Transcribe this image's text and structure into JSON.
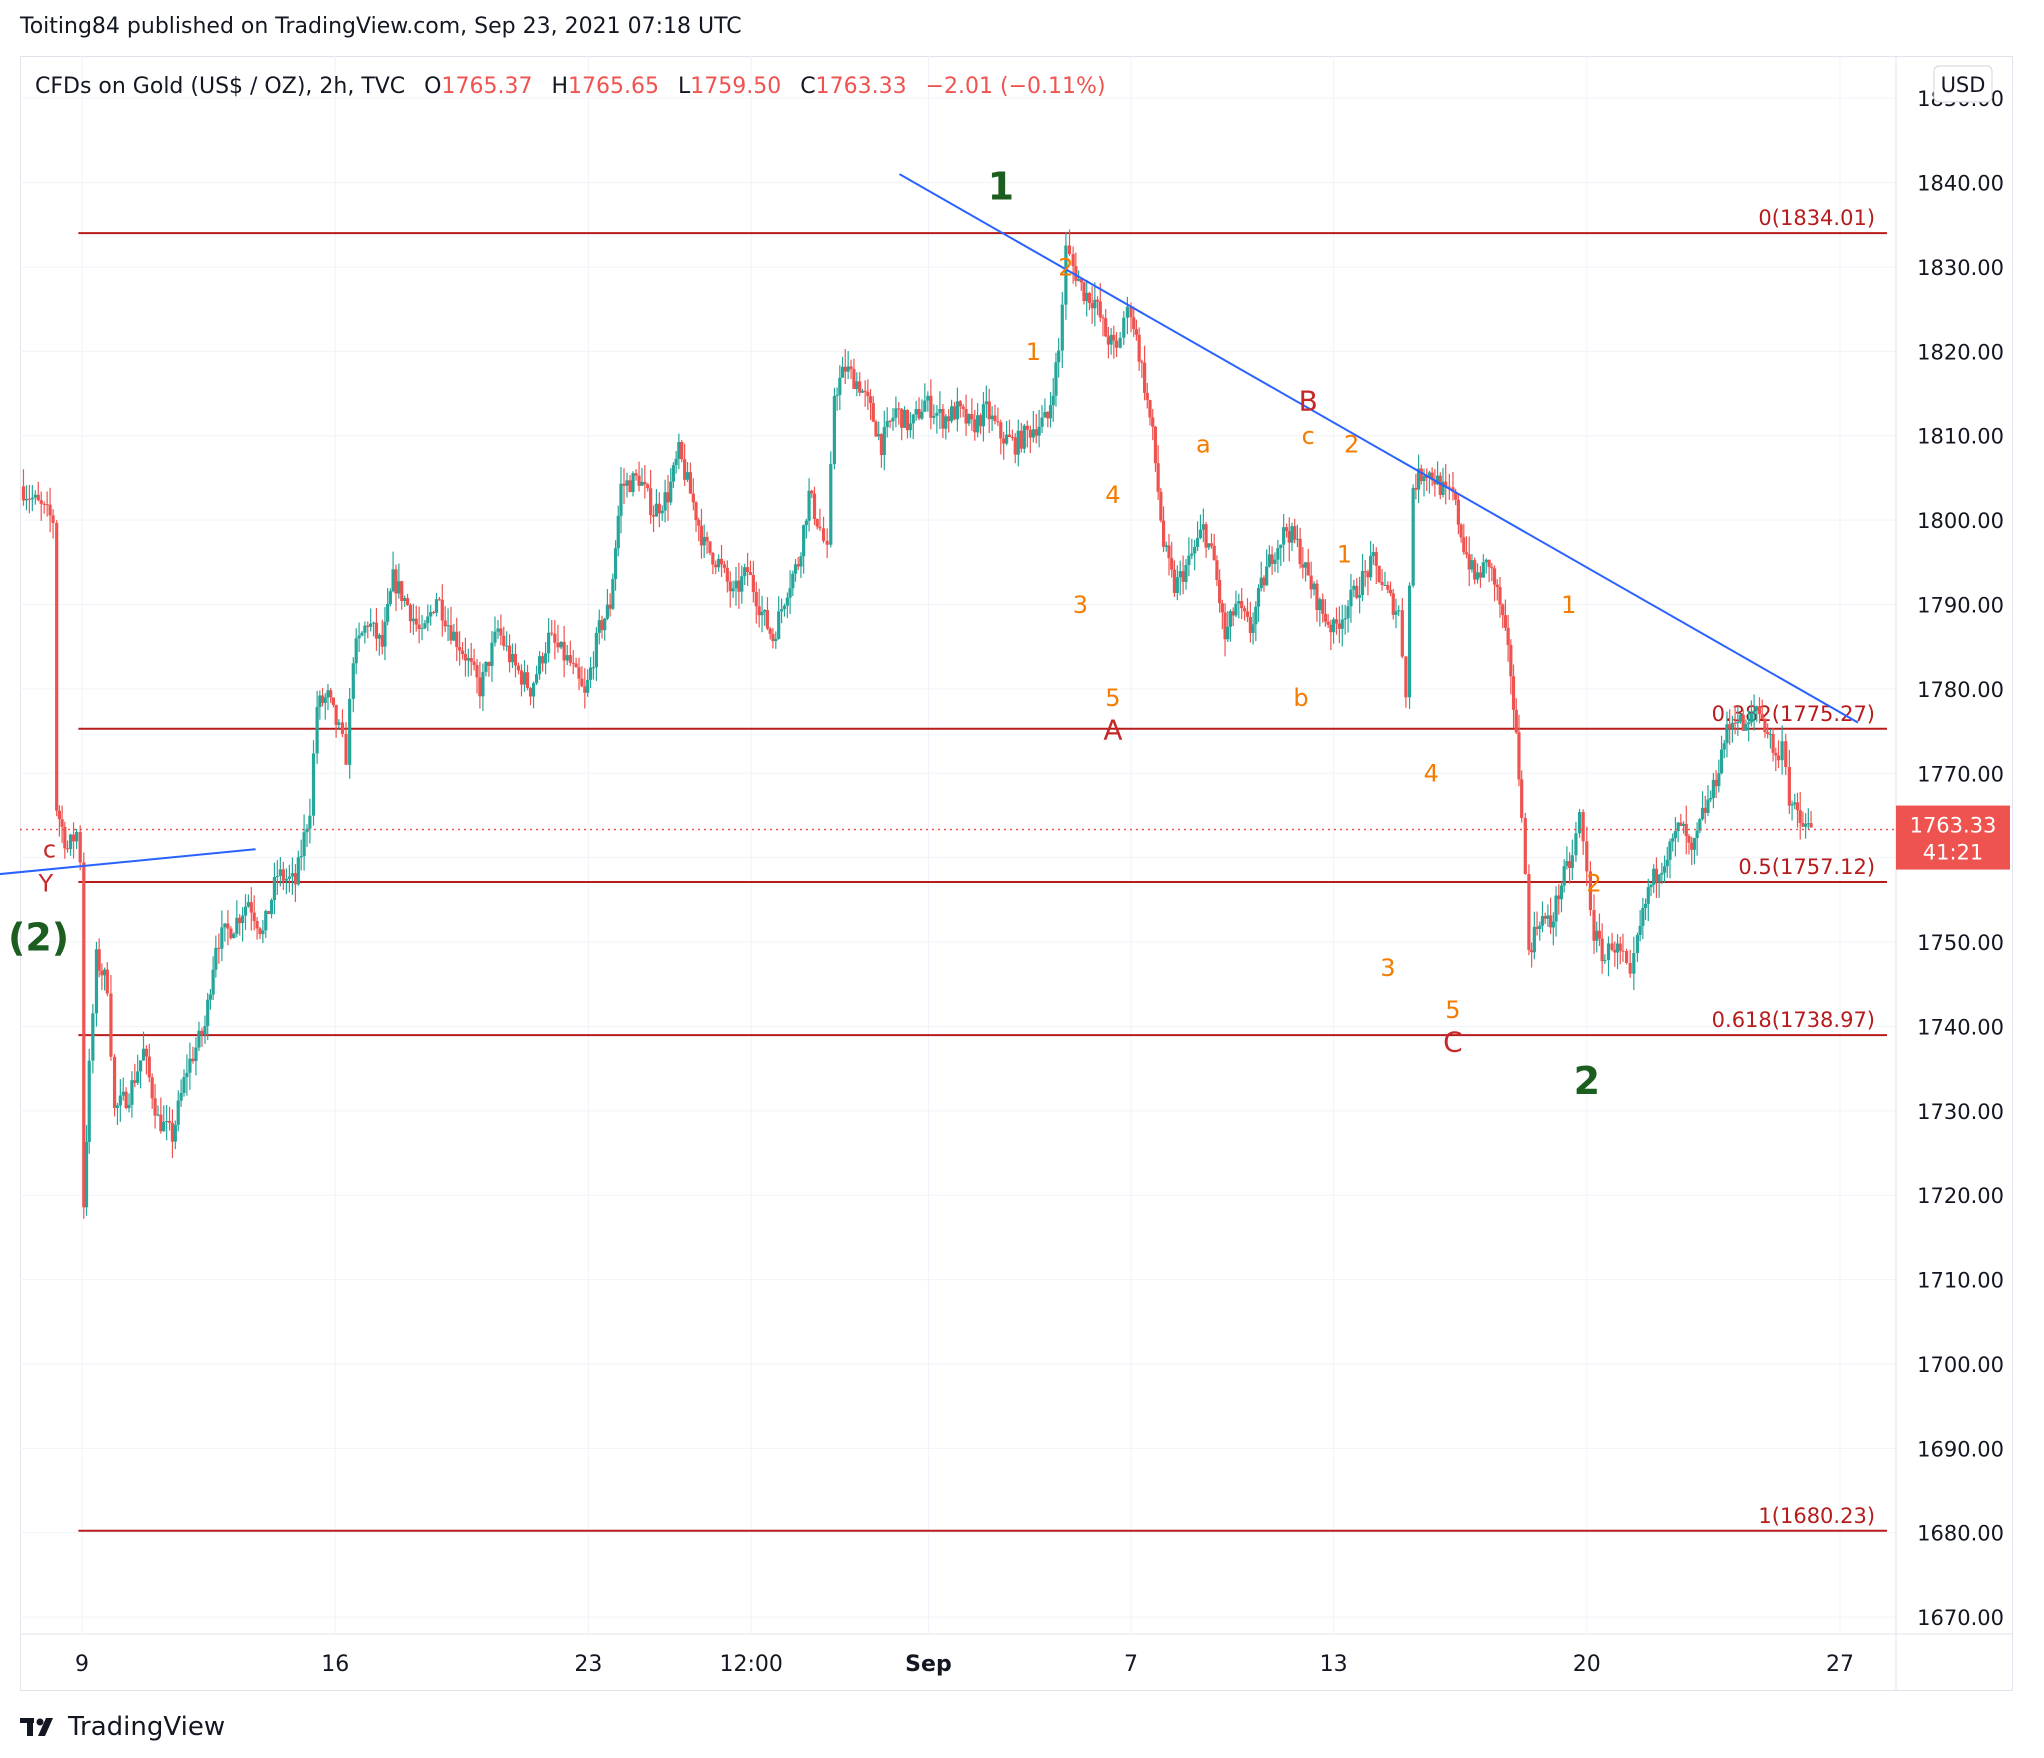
{
  "header": {
    "published": "Toiting84 published on TradingView.com, Sep 23, 2021 07:18 UTC"
  },
  "legend": {
    "symbol": "CFDs on Gold (US$ / OZ), 2h, TVC",
    "open_prefix": "O",
    "open": "1765.37",
    "high_prefix": "H",
    "high": "1765.65",
    "low_prefix": "L",
    "low": "1759.50",
    "close_prefix": "C",
    "close": "1763.33",
    "change": "−2.01 (−0.11%)"
  },
  "currency_button": "USD",
  "price_tag": {
    "price": "1763.33",
    "countdown": "41:21"
  },
  "footer": {
    "brand": "TradingView"
  },
  "colors": {
    "up": "#26a69a",
    "down": "#ef5350",
    "fib": "#b71c1c",
    "trend": "#2962ff",
    "wave_green": "#1b5e20",
    "wave_orange": "#f57c00",
    "wave_red": "#c62828"
  },
  "chart_data": {
    "type": "candlestick",
    "instrument": "CFDs on Gold (US$ / OZ)",
    "timeframe": "2h",
    "y_axis": {
      "min": 1668,
      "max": 1855,
      "ticks": [
        1850,
        1840,
        1830,
        1820,
        1810,
        1800,
        1790,
        1780,
        1770,
        1760,
        1750,
        1740,
        1730,
        1720,
        1710,
        1700,
        1690,
        1680,
        1670
      ],
      "tick_labels": [
        "1850.00",
        "1840.00",
        "1830.00",
        "1820.00",
        "1810.00",
        "1800.00",
        "1790.00",
        "1780.00",
        "1770.00",
        "1760.00",
        "1750.00",
        "1740.00",
        "1730.00",
        "1720.00",
        "1710.00",
        "1700.00",
        "1690.00",
        "1680.00",
        "1670.00"
      ]
    },
    "x_axis": {
      "range_days": [
        -0.5,
        49.1
      ],
      "ticks": [
        {
          "label": "9",
          "day": 0
        },
        {
          "label": "16",
          "day": 7
        },
        {
          "label": "23",
          "day": 14
        },
        {
          "label": "12:00",
          "day": 18.5
        },
        {
          "label": "Sep",
          "day": 23.4
        },
        {
          "label": "7",
          "day": 29
        },
        {
          "label": "13",
          "day": 34.6
        },
        {
          "label": "20",
          "day": 41.6
        },
        {
          "label": "27",
          "day": 48.6
        }
      ]
    },
    "price_path": [
      [
        -1.7,
        1804
      ],
      [
        -0.8,
        1800
      ],
      [
        -0.7,
        1766
      ],
      [
        -0.4,
        1761
      ],
      [
        -0.15,
        1763
      ],
      [
        -0.05,
        1760
      ],
      [
        0.05,
        1719
      ],
      [
        0.2,
        1735
      ],
      [
        0.4,
        1748
      ],
      [
        0.7,
        1745
      ],
      [
        0.9,
        1730
      ],
      [
        1.3,
        1732
      ],
      [
        1.7,
        1737
      ],
      [
        2.1,
        1729
      ],
      [
        2.5,
        1727
      ],
      [
        2.9,
        1735
      ],
      [
        3.4,
        1740
      ],
      [
        3.7,
        1750
      ],
      [
        4.2,
        1752
      ],
      [
        4.6,
        1755
      ],
      [
        5.0,
        1751
      ],
      [
        5.4,
        1758
      ],
      [
        5.9,
        1757
      ],
      [
        6.3,
        1766
      ],
      [
        6.5,
        1778
      ],
      [
        6.8,
        1779
      ],
      [
        7.1,
        1775
      ],
      [
        7.3,
        1772
      ],
      [
        7.5,
        1784
      ],
      [
        7.9,
        1788
      ],
      [
        8.3,
        1785
      ],
      [
        8.6,
        1793
      ],
      [
        9.0,
        1790
      ],
      [
        9.4,
        1786
      ],
      [
        9.8,
        1791
      ],
      [
        10.2,
        1787
      ],
      [
        10.6,
        1784
      ],
      [
        11.0,
        1780
      ],
      [
        11.5,
        1787
      ],
      [
        11.9,
        1783
      ],
      [
        12.4,
        1780
      ],
      [
        12.9,
        1786
      ],
      [
        13.5,
        1783
      ],
      [
        13.9,
        1779
      ],
      [
        14.3,
        1787
      ],
      [
        14.6,
        1790
      ],
      [
        14.9,
        1804
      ],
      [
        15.4,
        1805
      ],
      [
        15.8,
        1801
      ],
      [
        16.2,
        1803
      ],
      [
        16.5,
        1808
      ],
      [
        16.9,
        1802
      ],
      [
        17.2,
        1797
      ],
      [
        17.6,
        1795
      ],
      [
        18.0,
        1791
      ],
      [
        18.4,
        1794
      ],
      [
        18.8,
        1789
      ],
      [
        19.1,
        1786
      ],
      [
        19.5,
        1792
      ],
      [
        19.8,
        1795
      ],
      [
        20.1,
        1803
      ],
      [
        20.4,
        1799
      ],
      [
        20.6,
        1796
      ],
      [
        20.8,
        1815
      ],
      [
        21.1,
        1818
      ],
      [
        21.5,
        1816
      ],
      [
        21.8,
        1813
      ],
      [
        22.1,
        1809
      ],
      [
        22.5,
        1813
      ],
      [
        22.9,
        1811
      ],
      [
        23.3,
        1814
      ],
      [
        23.8,
        1812
      ],
      [
        24.2,
        1813
      ],
      [
        24.6,
        1811
      ],
      [
        25.0,
        1813
      ],
      [
        25.4,
        1810
      ],
      [
        25.8,
        1809
      ],
      [
        26.3,
        1811
      ],
      [
        26.7,
        1812
      ],
      [
        27.0,
        1820
      ],
      [
        27.2,
        1832
      ],
      [
        27.4,
        1830
      ],
      [
        27.7,
        1827
      ],
      [
        28.0,
        1826
      ],
      [
        28.3,
        1822
      ],
      [
        28.6,
        1820
      ],
      [
        28.8,
        1824
      ],
      [
        29.0,
        1825
      ],
      [
        29.3,
        1818
      ],
      [
        29.6,
        1810
      ],
      [
        29.9,
        1797
      ],
      [
        30.2,
        1792
      ],
      [
        30.6,
        1795
      ],
      [
        31.0,
        1799
      ],
      [
        31.3,
        1795
      ],
      [
        31.6,
        1786
      ],
      [
        31.9,
        1790
      ],
      [
        32.3,
        1787
      ],
      [
        32.6,
        1792
      ],
      [
        32.9,
        1796
      ],
      [
        33.3,
        1799
      ],
      [
        33.6,
        1797
      ],
      [
        33.9,
        1793
      ],
      [
        34.3,
        1789
      ],
      [
        34.6,
        1787
      ],
      [
        35.0,
        1790
      ],
      [
        35.4,
        1793
      ],
      [
        35.7,
        1795
      ],
      [
        36.1,
        1791
      ],
      [
        36.4,
        1789
      ],
      [
        36.6,
        1780
      ],
      [
        36.8,
        1804
      ],
      [
        37.1,
        1806
      ],
      [
        37.4,
        1805
      ],
      [
        37.7,
        1803
      ],
      [
        37.9,
        1803
      ],
      [
        38.2,
        1797
      ],
      [
        38.5,
        1793
      ],
      [
        38.9,
        1795
      ],
      [
        39.2,
        1790
      ],
      [
        39.5,
        1782
      ],
      [
        39.8,
        1766
      ],
      [
        40.0,
        1749
      ],
      [
        40.3,
        1753
      ],
      [
        40.6,
        1752
      ],
      [
        40.9,
        1757
      ],
      [
        41.2,
        1760
      ],
      [
        41.4,
        1765
      ],
      [
        41.6,
        1758
      ],
      [
        41.8,
        1751
      ],
      [
        42.1,
        1748
      ],
      [
        42.3,
        1750
      ],
      [
        42.6,
        1748
      ],
      [
        42.8,
        1745
      ],
      [
        43.0,
        1750
      ],
      [
        43.3,
        1756
      ],
      [
        43.6,
        1759
      ],
      [
        43.9,
        1761
      ],
      [
        44.2,
        1764
      ],
      [
        44.5,
        1760
      ],
      [
        44.8,
        1765
      ],
      [
        45.1,
        1768
      ],
      [
        45.4,
        1774
      ],
      [
        45.7,
        1777
      ],
      [
        46.0,
        1775
      ],
      [
        46.3,
        1778
      ],
      [
        46.6,
        1775
      ],
      [
        46.9,
        1771
      ],
      [
        47.0,
        1775
      ],
      [
        47.2,
        1767
      ],
      [
        47.5,
        1764
      ],
      [
        47.8,
        1763.33
      ]
    ],
    "fib_levels": [
      {
        "label": "0(1834.01)",
        "value": 1834.01
      },
      {
        "label": "0.382(1775.27)",
        "value": 1775.27
      },
      {
        "label": "0.5(1757.12)",
        "value": 1757.12
      },
      {
        "label": "0.618(1738.97)",
        "value": 1738.97
      },
      {
        "label": "1(1680.23)",
        "value": 1680.23
      }
    ],
    "fib_range": {
      "start_day": -0.1,
      "end_day": 49.9
    },
    "trendlines": [
      {
        "start": {
          "day": 22.6,
          "price": 1841
        },
        "end": {
          "day": 49.1,
          "price": 1776
        }
      },
      {
        "start": {
          "day": -2.4,
          "price": 1758
        },
        "end": {
          "day": 4.8,
          "price": 1761
        }
      }
    ],
    "current_price": 1763.33,
    "wave_labels": [
      {
        "text": "1",
        "day": 25.4,
        "price": 1838,
        "color": "green",
        "size": "large"
      },
      {
        "text": "2",
        "day": 41.6,
        "price": 1732,
        "color": "green",
        "size": "large"
      },
      {
        "text": "(2)",
        "day": -1.2,
        "price": 1749,
        "color": "green",
        "size": "large"
      },
      {
        "text": "c",
        "day": -0.9,
        "price": 1760,
        "color": "red",
        "size": "small"
      },
      {
        "text": "Y",
        "day": -1.0,
        "price": 1756,
        "color": "red",
        "size": "small"
      },
      {
        "text": "2",
        "day": 27.2,
        "price": 1829,
        "color": "orange",
        "size": "small"
      },
      {
        "text": "1",
        "day": 26.3,
        "price": 1819,
        "color": "orange",
        "size": "small"
      },
      {
        "text": "3",
        "day": 27.6,
        "price": 1789,
        "color": "orange",
        "size": "small"
      },
      {
        "text": "4",
        "day": 28.5,
        "price": 1802,
        "color": "orange",
        "size": "small"
      },
      {
        "text": "5",
        "day": 28.5,
        "price": 1778,
        "color": "orange",
        "size": "small"
      },
      {
        "text": "A",
        "day": 28.5,
        "price": 1774,
        "color": "red",
        "size": "medium"
      },
      {
        "text": "a",
        "day": 31.0,
        "price": 1808,
        "color": "orange",
        "size": "small"
      },
      {
        "text": "B",
        "day": 33.9,
        "price": 1813,
        "color": "red",
        "size": "medium"
      },
      {
        "text": "c",
        "day": 33.9,
        "price": 1809,
        "color": "orange",
        "size": "small"
      },
      {
        "text": "b",
        "day": 33.7,
        "price": 1778,
        "color": "orange",
        "size": "small"
      },
      {
        "text": "2",
        "day": 35.1,
        "price": 1808,
        "color": "orange",
        "size": "small"
      },
      {
        "text": "1",
        "day": 34.9,
        "price": 1795,
        "color": "orange",
        "size": "small"
      },
      {
        "text": "4",
        "day": 37.3,
        "price": 1769,
        "color": "orange",
        "size": "small"
      },
      {
        "text": "3",
        "day": 36.1,
        "price": 1746,
        "color": "orange",
        "size": "small"
      },
      {
        "text": "5",
        "day": 37.9,
        "price": 1741,
        "color": "orange",
        "size": "small"
      },
      {
        "text": "C",
        "day": 37.9,
        "price": 1737,
        "color": "red",
        "size": "medium"
      },
      {
        "text": "1",
        "day": 41.1,
        "price": 1789,
        "color": "orange",
        "size": "small"
      },
      {
        "text": "2",
        "day": 41.8,
        "price": 1756,
        "color": "orange",
        "size": "small"
      }
    ]
  }
}
